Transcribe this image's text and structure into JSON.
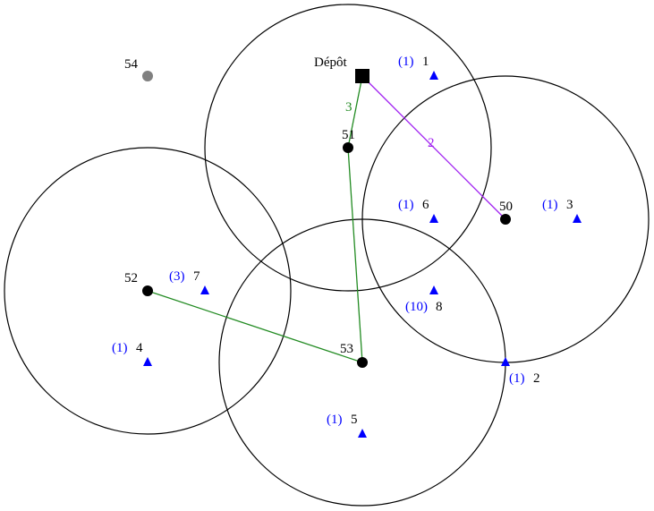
{
  "colors": {
    "circle": "#000000",
    "facility": "#000000",
    "unused_facility": "#808080",
    "customer": "#0000ff",
    "demand_text": "#0000ff",
    "route_green": "#228b22",
    "route_purple": "#a020f0"
  },
  "depot": {
    "label": "Dépôt"
  },
  "facilities": [
    {
      "id": "50",
      "label": "50"
    },
    {
      "id": "51",
      "label": "51"
    },
    {
      "id": "52",
      "label": "52"
    },
    {
      "id": "53",
      "label": "53"
    },
    {
      "id": "54",
      "label": "54"
    }
  ],
  "customers": [
    {
      "id": "1",
      "label": "1",
      "demand": "(1)"
    },
    {
      "id": "2",
      "label": "2",
      "demand": "(1)"
    },
    {
      "id": "3",
      "label": "3",
      "demand": "(1)"
    },
    {
      "id": "4",
      "label": "4",
      "demand": "(1)"
    },
    {
      "id": "5",
      "label": "5",
      "demand": "(1)"
    },
    {
      "id": "6",
      "label": "6",
      "demand": "(1)"
    },
    {
      "id": "7",
      "label": "7",
      "demand": "(3)"
    },
    {
      "id": "8",
      "label": "8",
      "demand": "(10)"
    }
  ],
  "routes": [
    {
      "label": "3",
      "color": "#228b22"
    },
    {
      "label": "2",
      "color": "#a020f0"
    }
  ]
}
